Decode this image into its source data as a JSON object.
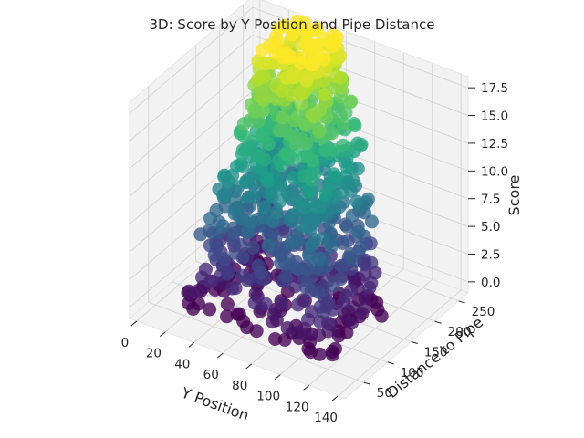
{
  "chart_data": {
    "type": "scatter",
    "projection": "3d",
    "title": "3D: Score by Y Position and Pipe Distance",
    "xlabel": "Y Position",
    "ylabel": "Distance to Pipe",
    "zlabel": "Score",
    "xlim": [
      -5,
      145
    ],
    "ylim": [
      10,
      270
    ],
    "zlim": [
      -1,
      18.5
    ],
    "xticks": [
      "0",
      "20",
      "40",
      "60",
      "80",
      "100",
      "120",
      "140"
    ],
    "yticks": [
      "50",
      "100",
      "150",
      "200",
      "250"
    ],
    "zticks": [
      "0.0",
      "2.5",
      "5.0",
      "7.5",
      "10.0",
      "12.5",
      "15.0",
      "17.5"
    ],
    "colormap": "viridis",
    "color_by": "Score",
    "grid": true,
    "pane_color": "#f2f2f2",
    "score_levels": [
      0,
      1,
      2,
      3,
      4,
      5,
      6,
      7,
      8,
      9,
      10,
      11,
      12,
      13,
      14,
      15,
      16,
      17,
      18
    ]
  }
}
